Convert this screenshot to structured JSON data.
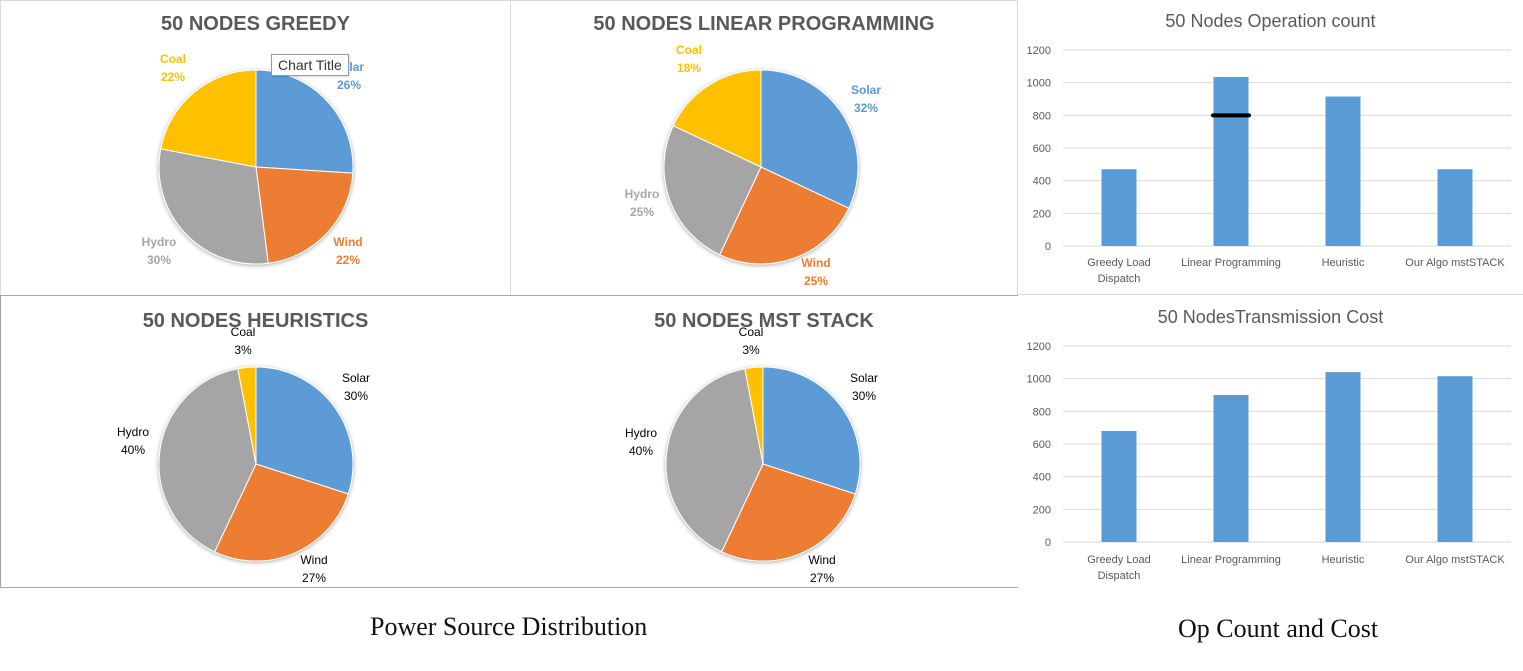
{
  "chart_data": [
    {
      "type": "pie",
      "title": "50 NODES GREEDY",
      "categories": [
        "Solar",
        "Wind",
        "Hydro",
        "Coal"
      ],
      "values": [
        26,
        22,
        30,
        22
      ],
      "value_labels": [
        "26%",
        "22%",
        "30%",
        "22%"
      ],
      "colors": [
        "#5b9bd5",
        "#ed7d31",
        "#a5a5a5",
        "#ffc000"
      ],
      "label_style": "colored-bold",
      "tooltip": "Chart Title"
    },
    {
      "type": "pie",
      "title": "50 NODES LINEAR PROGRAMMING",
      "categories": [
        "Solar",
        "Wind",
        "Hydro",
        "Coal"
      ],
      "values": [
        32,
        25,
        25,
        18
      ],
      "value_labels": [
        "32%",
        "25%",
        "25%",
        "18%"
      ],
      "colors": [
        "#5b9bd5",
        "#ed7d31",
        "#a5a5a5",
        "#ffc000"
      ],
      "label_style": "colored-bold"
    },
    {
      "type": "pie",
      "title": "50 NODES HEURISTICS",
      "categories": [
        "Solar",
        "Wind",
        "Hydro",
        "Coal"
      ],
      "values": [
        30,
        27,
        40,
        3
      ],
      "value_labels": [
        "30%",
        "27%",
        "40%",
        "3%"
      ],
      "colors": [
        "#5b9bd5",
        "#ed7d31",
        "#a5a5a5",
        "#ffc000"
      ],
      "label_style": "black"
    },
    {
      "type": "pie",
      "title": "50 NODES MST STACK",
      "categories": [
        "Solar",
        "Wind",
        "Hydro",
        "Coal"
      ],
      "values": [
        30,
        27,
        40,
        3
      ],
      "value_labels": [
        "30%",
        "27%",
        "40%",
        "3%"
      ],
      "colors": [
        "#5b9bd5",
        "#ed7d31",
        "#a5a5a5",
        "#ffc000"
      ],
      "label_style": "black"
    },
    {
      "type": "bar",
      "title": "50 Nodes Operation count",
      "categories": [
        "Greedy Load Dispatch",
        "Linear Programming",
        "Heuristic",
        "Our Algo mstSTACK"
      ],
      "values": [
        470,
        1035,
        915,
        470
      ],
      "ylim": [
        0,
        1200
      ],
      "yticks": [
        "0",
        "200",
        "400",
        "600",
        "800",
        "1000",
        "1200"
      ],
      "color": "#5b9bd5",
      "grid": true,
      "annotation": {
        "type": "marker-line",
        "category": "Linear Programming",
        "value": 800,
        "color": "#000000"
      }
    },
    {
      "type": "bar",
      "title": "50 NodesTransmission Cost",
      "categories": [
        "Greedy Load Dispatch",
        "Linear Programming",
        "Heuristic",
        "Our Algo mstSTACK"
      ],
      "values": [
        680,
        900,
        1040,
        1015
      ],
      "ylim": [
        0,
        1200
      ],
      "yticks": [
        "0",
        "200",
        "400",
        "600",
        "800",
        "1000",
        "1200"
      ],
      "color": "#5b9bd5",
      "grid": true
    }
  ],
  "captions": {
    "left": "Power Source Distribution",
    "right": "Op Count and Cost"
  }
}
